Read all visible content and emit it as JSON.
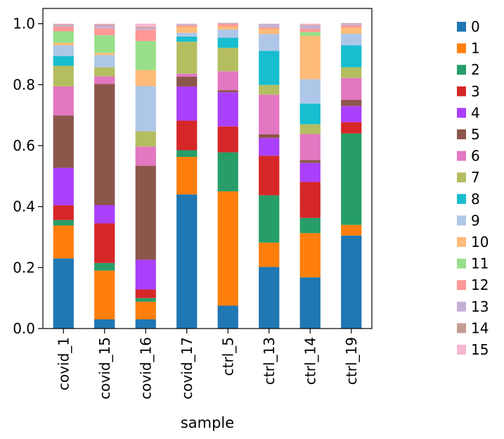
{
  "chart_data": {
    "type": "bar",
    "stacked": true,
    "xlabel": "sample",
    "ylabel": "",
    "ylim": [
      0,
      1.05
    ],
    "yticks": [
      0.0,
      0.2,
      0.4,
      0.6,
      0.8,
      1.0
    ],
    "ytick_labels": [
      "0.0",
      "0.2",
      "0.4",
      "0.6",
      "0.8",
      "1.0"
    ],
    "grid": false,
    "legend_position": "right",
    "categories": [
      "covid_1",
      "covid_15",
      "covid_16",
      "covid_17",
      "ctrl_5",
      "ctrl_13",
      "ctrl_14",
      "ctrl_19"
    ],
    "series": [
      {
        "name": "0",
        "color": "#1f77b4",
        "values": [
          0.23,
          0.03,
          0.03,
          0.44,
          0.075,
          0.202,
          0.168,
          0.305
        ]
      },
      {
        "name": "1",
        "color": "#ff7f0e",
        "values": [
          0.108,
          0.16,
          0.058,
          0.123,
          0.375,
          0.08,
          0.145,
          0.035
        ]
      },
      {
        "name": "2",
        "color": "#279e68",
        "values": [
          0.018,
          0.025,
          0.012,
          0.022,
          0.128,
          0.155,
          0.05,
          0.3
        ]
      },
      {
        "name": "3",
        "color": "#d62728",
        "values": [
          0.048,
          0.13,
          0.028,
          0.097,
          0.085,
          0.13,
          0.118,
          0.037
        ]
      },
      {
        "name": "4",
        "color": "#aa40fc",
        "values": [
          0.123,
          0.06,
          0.098,
          0.112,
          0.112,
          0.058,
          0.062,
          0.053
        ]
      },
      {
        "name": "5",
        "color": "#8c564b",
        "values": [
          0.172,
          0.397,
          0.308,
          0.032,
          0.007,
          0.012,
          0.01,
          0.02
        ]
      },
      {
        "name": "6",
        "color": "#e377c2",
        "values": [
          0.095,
          0.025,
          0.063,
          0.01,
          0.062,
          0.13,
          0.085,
          0.072
        ]
      },
      {
        "name": "7",
        "color": "#b5bd61",
        "values": [
          0.068,
          0.03,
          0.05,
          0.105,
          0.077,
          0.032,
          0.032,
          0.035
        ]
      },
      {
        "name": "8",
        "color": "#17becf",
        "values": [
          0.032,
          0.0,
          0.0,
          0.017,
          0.033,
          0.112,
          0.068,
          0.072
        ]
      },
      {
        "name": "9",
        "color": "#aec7e8",
        "values": [
          0.035,
          0.04,
          0.148,
          0.012,
          0.027,
          0.055,
          0.08,
          0.038
        ]
      },
      {
        "name": "10",
        "color": "#ffbb78",
        "values": [
          0.008,
          0.007,
          0.053,
          0.02,
          0.01,
          0.017,
          0.142,
          0.02
        ]
      },
      {
        "name": "11",
        "color": "#98df8a",
        "values": [
          0.038,
          0.058,
          0.095,
          0.0,
          0.0,
          0.0,
          0.013,
          0.0
        ]
      },
      {
        "name": "12",
        "color": "#ff9896",
        "values": [
          0.015,
          0.023,
          0.037,
          0.005,
          0.008,
          0.005,
          0.01,
          0.008
        ]
      },
      {
        "name": "13",
        "color": "#c5b0d5",
        "values": [
          0.005,
          0.008,
          0.005,
          0.003,
          0.003,
          0.01,
          0.01,
          0.005
        ]
      },
      {
        "name": "14",
        "color": "#c49c94",
        "values": [
          0.003,
          0.004,
          0.004,
          0.001,
          0.001,
          0.001,
          0.003,
          0.002
        ]
      },
      {
        "name": "15",
        "color": "#f7b6d2",
        "values": [
          0.002,
          0.003,
          0.011,
          0.001,
          0.0,
          0.001,
          0.004,
          0.0
        ]
      }
    ]
  }
}
